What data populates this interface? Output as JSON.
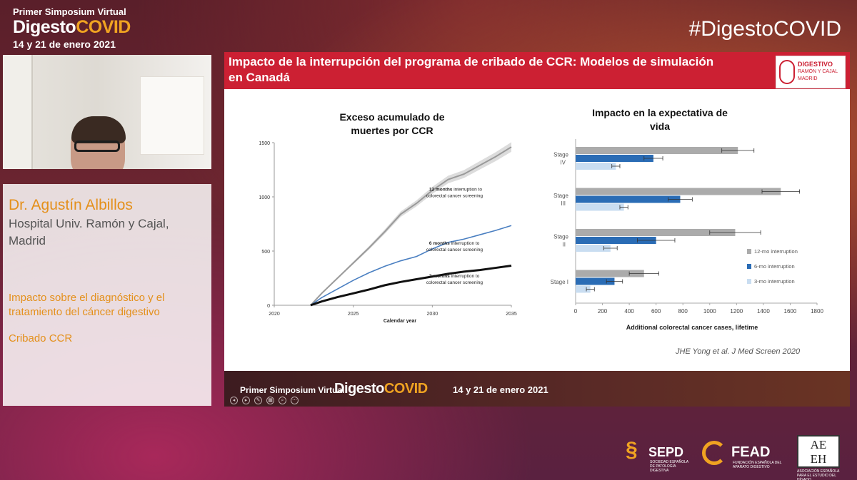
{
  "event": {
    "pre_title": "Primer Simposium Virtual",
    "name_part1": "Digesto",
    "name_part2": "COVID",
    "dates": "14 y 21 de enero 2021",
    "hashtag": "#DigestoCOVID"
  },
  "speaker": {
    "name": "Dr. Agustín Albillos",
    "affiliation": "Hospital Univ. Ramón y Cajal, Madrid",
    "topic": "Impacto sobre el diagnóstico y el tratamiento del cáncer digestivo",
    "subtopic": "Cribado CCR"
  },
  "slide": {
    "title": "Impacto de la interrupción del programa de cribado de CCR: Modelos de simulación en Canadá",
    "logo": {
      "line1": "DIGESTIVO",
      "line2": "RAMÓN Y CAJAL",
      "line3": "MADRID"
    },
    "citation": "JHE Yong et al. J Med Screen 2020",
    "footer": {
      "pre_title": "Primer Simposium Virtual",
      "name_part1": "Digesto",
      "name_part2": "COVID",
      "dates": "14 y 21 de enero 2021"
    }
  },
  "chart_data": [
    {
      "type": "line",
      "title": "Exceso acumulado de muertes por CCR",
      "xlabel": "Calendar year",
      "ylabel": "",
      "xlim": [
        2020,
        2035
      ],
      "ylim": [
        0,
        1500
      ],
      "x_ticks": [
        "2020",
        "2025",
        "2030",
        "2035"
      ],
      "y_ticks": [
        "0",
        "500",
        "1000",
        "1500"
      ],
      "grid": false,
      "series": [
        {
          "name": "12 months interruption to colorectal cancer screening",
          "color": "#9a9a9a",
          "x": [
            2022.3,
            2023,
            2024,
            2025,
            2026,
            2027,
            2028,
            2029,
            2030,
            2031,
            2032,
            2033,
            2034,
            2035
          ],
          "values": [
            0,
            110,
            250,
            390,
            530,
            680,
            840,
            940,
            1060,
            1160,
            1210,
            1290,
            1370,
            1460
          ]
        },
        {
          "name": "6 months interruption to colorectal cancer screening",
          "color": "#4a7fc1",
          "x": [
            2022.3,
            2023,
            2024,
            2025,
            2026,
            2027,
            2028,
            2029,
            2030,
            2031,
            2032,
            2033,
            2034,
            2035
          ],
          "values": [
            0,
            70,
            150,
            230,
            300,
            360,
            410,
            450,
            520,
            580,
            610,
            650,
            690,
            735
          ]
        },
        {
          "name": "3 months interruption to colorectal cancer screening",
          "color": "#111111",
          "x": [
            2022.3,
            2023,
            2024,
            2025,
            2026,
            2027,
            2028,
            2029,
            2030,
            2031,
            2032,
            2033,
            2034,
            2035
          ],
          "values": [
            0,
            35,
            75,
            110,
            145,
            185,
            215,
            240,
            265,
            290,
            310,
            325,
            345,
            365
          ]
        }
      ],
      "line_labels": [
        {
          "bold": "12 months",
          "rest": " interruption to",
          "line2": "colorectal cancer screening"
        },
        {
          "bold": "6 months",
          "rest": " interruption to",
          "line2": "colorectal cancer screening"
        },
        {
          "bold": "3 months",
          "rest": " interruption to",
          "line2": "colorectal cancer screening"
        }
      ]
    },
    {
      "type": "bar",
      "orientation": "horizontal",
      "title": "Impacto en la expectativa de vida",
      "xlabel": "Additional colorectal cancer cases, lifetime",
      "ylabel": "",
      "xlim": [
        0,
        1800
      ],
      "x_ticks": [
        "0",
        "200",
        "400",
        "600",
        "800",
        "1000",
        "1200",
        "1400",
        "1600",
        "1800"
      ],
      "grid": false,
      "legend_position": "right",
      "categories": [
        {
          "line1": "Stage",
          "line2": "IV"
        },
        {
          "line1": "Stage",
          "line2": "III"
        },
        {
          "line1": "Stage",
          "line2": "II"
        },
        {
          "line1": "Stage I",
          "line2": ""
        }
      ],
      "series": [
        {
          "name": "12-mo interruption",
          "color": "#ababab",
          "values": [
            1210,
            1530,
            1190,
            510
          ],
          "errors": [
            120,
            140,
            190,
            110
          ]
        },
        {
          "name": "6-mo interruption",
          "color": "#2a6cb5",
          "values": [
            580,
            780,
            600,
            290
          ],
          "errors": [
            70,
            90,
            140,
            60
          ]
        },
        {
          "name": "3-mo interruption",
          "color": "#c9ddf1",
          "values": [
            300,
            360,
            260,
            110
          ],
          "errors": [
            30,
            30,
            50,
            30
          ]
        }
      ]
    }
  ],
  "sponsors": {
    "sepd": "SEPD",
    "sepd_sub": "SOCIEDAD ESPAÑOLA DE PATOLOGÍA DIGESTIVA",
    "fead": "FEAD",
    "fead_sub": "FUNDACIÓN ESPAÑOLA DEL APARATO DIGESTIVO",
    "aeeh_line1": "AE",
    "aeeh_line2": "EH",
    "aeeh_sub": "ASOCIACIÓN ESPAÑOLA PARA EL ESTUDIO DEL HÍGADO"
  },
  "colors": {
    "accent": "#f0a321",
    "slide_header": "#cc2033"
  }
}
